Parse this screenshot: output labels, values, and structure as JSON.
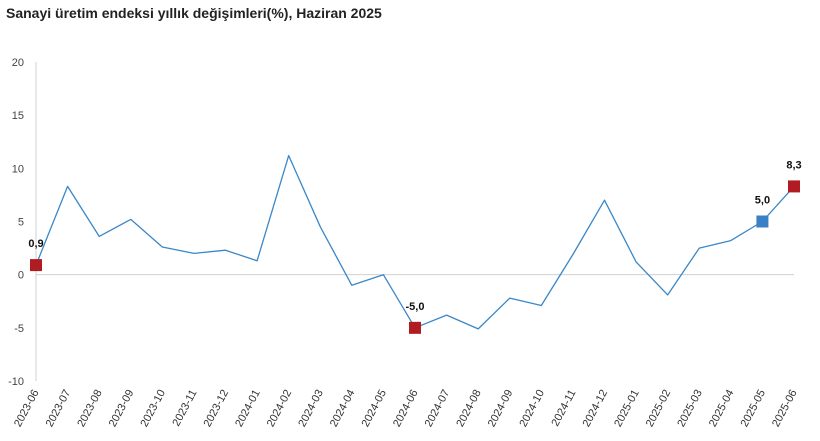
{
  "chart_data": {
    "type": "line",
    "title": "Sanayi üretim endeksi yıllık değişimleri(%), Haziran 2025",
    "xlabel": "",
    "ylabel": "",
    "ylim": [
      -10,
      20
    ],
    "yticks": [
      20,
      15,
      10,
      5,
      0,
      -5,
      -10
    ],
    "grid": false,
    "legend": "none",
    "categories": [
      "2023-06",
      "2023-07",
      "2023-08",
      "2023-09",
      "2023-10",
      "2023-11",
      "2023-12",
      "2024-01",
      "2024-02",
      "2024-03",
      "2024-04",
      "2024-05",
      "2024-06",
      "2024-07",
      "2024-08",
      "2024-09",
      "2024-10",
      "2024-11",
      "2024-12",
      "2025-01",
      "2025-02",
      "2025-03",
      "2025-04",
      "2025-05",
      "2025-06"
    ],
    "series": [
      {
        "values": [
          0.9,
          8.3,
          3.6,
          5.2,
          2.6,
          2.0,
          2.3,
          1.3,
          11.2,
          4.5,
          -1.0,
          0.0,
          -5.0,
          -3.8,
          -5.1,
          -2.2,
          -2.9,
          1.9,
          7.0,
          1.2,
          -1.9,
          2.5,
          3.2,
          5.0,
          8.3
        ],
        "color": "#3a87c8"
      }
    ],
    "highlights": [
      {
        "index": 0,
        "label": "0,9",
        "color": "#b01c22"
      },
      {
        "index": 12,
        "label": "-5,0",
        "color": "#b01c22"
      },
      {
        "index": 23,
        "label": "5,0",
        "color": "#3a80c4"
      },
      {
        "index": 24,
        "label": "8,3",
        "color": "#b01c22"
      }
    ]
  }
}
